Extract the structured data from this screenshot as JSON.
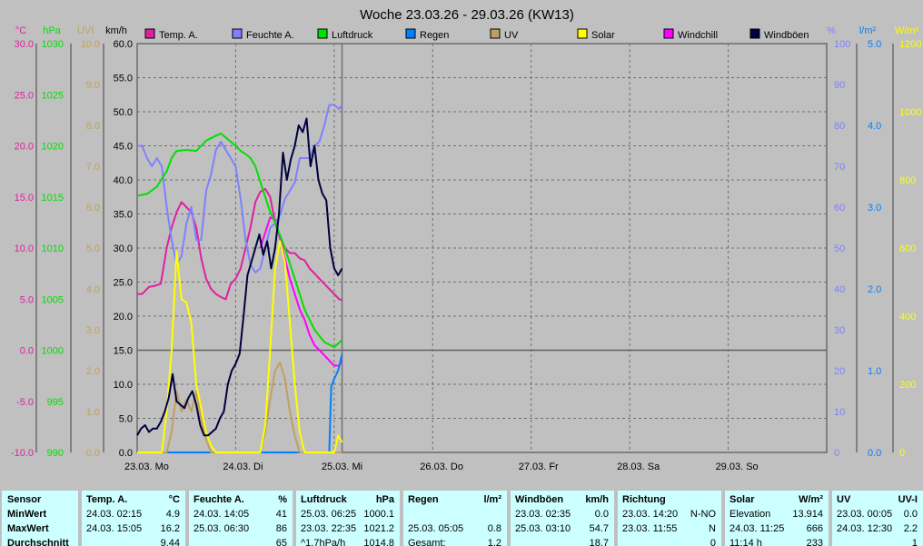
{
  "window": {
    "title": "Woche 23.03.26 - 29.03.26 (KW13)"
  },
  "legend": [
    {
      "label": "Temp. A.",
      "color": "#e020a0"
    },
    {
      "label": "Feuchte A.",
      "color": "#8080ff"
    },
    {
      "label": "Luftdruck",
      "color": "#00e000"
    },
    {
      "label": "Regen",
      "color": "#0080ff"
    },
    {
      "label": "UV",
      "color": "#c0a060"
    },
    {
      "label": "Solar",
      "color": "#ffff00"
    },
    {
      "label": "Windchill",
      "color": "#ff00ff"
    },
    {
      "label": "Windböen",
      "color": "#000040"
    }
  ],
  "colors": {
    "temp": "#e020a0",
    "hum": "#8080ff",
    "press": "#00e000",
    "rain": "#0080ff",
    "uv": "#c0a060",
    "solar": "#ffff00",
    "windchill": "#ff00ff",
    "gust": "#000040",
    "plot_bg": "#c0c0c0",
    "grid": "#707070",
    "zero_line": "#606060",
    "stats_bg": "#ccffff"
  },
  "chart_data": {
    "type": "line",
    "title": "Woche 23.03.26 - 29.03.26 (KW13)",
    "x_unit": "days since 23.03. 00:00",
    "x_range": [
      0,
      7
    ],
    "day_labels": [
      "23.03.  Mo",
      "24.03.  Di",
      "25.03.  Mi",
      "26.03.  Do",
      "27.03.  Fr",
      "28.03.  Sa",
      "29.03.  So"
    ],
    "cursor_x": 2.08,
    "axes": [
      {
        "id": "temp",
        "unit": "°C",
        "color": "#e020a0",
        "min": -10,
        "max": 30,
        "ticks": [
          "30.0",
          "25.0",
          "20.0",
          "15.0",
          "10.0",
          "5.0",
          "0.0",
          "-5.0",
          "-10.0"
        ]
      },
      {
        "id": "press",
        "unit": "hPa",
        "color": "#00e000",
        "min": 990,
        "max": 1030,
        "ticks": [
          "1030",
          "1025",
          "1020",
          "1015",
          "1010",
          "1005",
          "1000",
          "995",
          "990"
        ]
      },
      {
        "id": "uv",
        "unit": "UVI",
        "color": "#c0a060",
        "min": 0,
        "max": 10,
        "ticks": [
          "10.0",
          "9.0",
          "8.0",
          "7.0",
          "6.0",
          "5.0",
          "4.0",
          "3.0",
          "2.0",
          "1.0",
          "0.0"
        ]
      },
      {
        "id": "wind",
        "unit": "km/h",
        "color": "#000000",
        "min": 0,
        "max": 60,
        "ticks": [
          "60.0",
          "55.0",
          "50.0",
          "45.0",
          "40.0",
          "35.0",
          "30.0",
          "25.0",
          "20.0",
          "15.0",
          "10.0",
          "5.0",
          "0.0"
        ]
      },
      {
        "id": "hum",
        "unit": "%",
        "color": "#8080ff",
        "min": 0,
        "max": 100,
        "ticks": [
          "100",
          "90",
          "80",
          "70",
          "60",
          "50",
          "40",
          "30",
          "20",
          "10",
          "0"
        ]
      },
      {
        "id": "rain",
        "unit": "l/m²",
        "color": "#0080ff",
        "min": 0,
        "max": 5,
        "ticks": [
          "5.0",
          "4.0",
          "3.0",
          "2.0",
          "1.0",
          "0.0"
        ]
      },
      {
        "id": "solar",
        "unit": "W/m²",
        "color": "#ffff00",
        "min": 0,
        "max": 1200,
        "ticks": [
          "1200",
          "1000",
          "800",
          "600",
          "400",
          "200",
          "0"
        ]
      }
    ],
    "series": [
      {
        "name": "Temp. A.",
        "axis": "temp",
        "color": "#e020a0",
        "x": [
          0,
          0.05,
          0.12,
          0.18,
          0.24,
          0.3,
          0.35,
          0.4,
          0.45,
          0.5,
          0.55,
          0.6,
          0.65,
          0.7,
          0.75,
          0.8,
          0.85,
          0.9,
          0.95,
          1.0,
          1.05,
          1.1,
          1.15,
          1.2,
          1.25,
          1.3,
          1.35,
          1.4,
          1.45,
          1.5,
          1.55,
          1.6,
          1.65,
          1.7,
          1.75,
          1.8,
          1.85,
          1.9,
          1.95,
          2.0,
          2.05,
          2.08
        ],
        "y": [
          5.5,
          5.5,
          6.2,
          6.3,
          6.5,
          10.0,
          12.0,
          13.5,
          14.5,
          14.0,
          13.5,
          12.0,
          9.0,
          7.0,
          6.0,
          5.5,
          5.2,
          5.0,
          6.5,
          7.0,
          8.0,
          10.0,
          12.0,
          14.5,
          15.5,
          15.8,
          15.0,
          12.5,
          11.0,
          10.0,
          9.5,
          9.5,
          9.0,
          8.8,
          8.0,
          7.5,
          7.0,
          6.5,
          6.0,
          5.5,
          5.0,
          4.9
        ]
      },
      {
        "name": "Windchill",
        "axis": "temp",
        "color": "#ff00ff",
        "x": [
          1.25,
          1.3,
          1.35,
          1.4,
          1.45,
          1.5,
          1.55,
          1.6,
          1.65,
          1.7,
          1.75,
          1.8,
          1.85,
          1.9,
          1.95,
          2.0,
          2.05,
          2.08
        ],
        "y": [
          10.0,
          11.5,
          13.0,
          12.8,
          11.0,
          9.0,
          7.0,
          5.5,
          4.0,
          3.0,
          1.5,
          0.5,
          0.0,
          -0.5,
          -1.0,
          -1.5,
          -1.5,
          -1.0
        ]
      },
      {
        "name": "Feuchte A.",
        "axis": "hum",
        "color": "#8080ff",
        "x": [
          0,
          0.05,
          0.1,
          0.15,
          0.2,
          0.25,
          0.3,
          0.35,
          0.4,
          0.45,
          0.5,
          0.55,
          0.6,
          0.65,
          0.7,
          0.75,
          0.8,
          0.85,
          0.9,
          0.95,
          1.0,
          1.05,
          1.1,
          1.15,
          1.2,
          1.25,
          1.3,
          1.35,
          1.4,
          1.45,
          1.5,
          1.55,
          1.6,
          1.65,
          1.7,
          1.75,
          1.8,
          1.85,
          1.9,
          1.95,
          2.0,
          2.05,
          2.08
        ],
        "y": [
          75,
          75,
          72,
          70,
          72,
          70,
          60,
          52,
          46,
          48,
          56,
          60,
          52,
          52,
          64,
          68,
          74,
          76,
          74,
          72,
          70,
          62,
          52,
          46,
          44,
          45,
          50,
          55,
          56,
          58,
          62,
          64,
          66,
          72,
          72,
          72,
          75,
          76,
          80,
          85,
          85,
          84,
          85
        ]
      },
      {
        "name": "Luftdruck",
        "axis": "press",
        "color": "#00e000",
        "x": [
          0,
          0.1,
          0.2,
          0.3,
          0.35,
          0.4,
          0.5,
          0.6,
          0.7,
          0.8,
          0.85,
          0.9,
          0.95,
          1.0,
          1.05,
          1.1,
          1.15,
          1.2,
          1.3,
          1.35,
          1.4,
          1.5,
          1.6,
          1.7,
          1.8,
          1.9,
          2.0,
          2.08
        ],
        "y": [
          1015.1,
          1015.3,
          1016.0,
          1017.5,
          1018.8,
          1019.5,
          1019.6,
          1019.5,
          1020.5,
          1021.0,
          1021.2,
          1020.8,
          1020.4,
          1020.0,
          1019.5,
          1019.2,
          1018.8,
          1018.0,
          1015.0,
          1013.5,
          1012.5,
          1010.0,
          1007.0,
          1004.0,
          1002.0,
          1000.8,
          1000.3,
          1001.0
        ]
      },
      {
        "name": "Regen",
        "axis": "rain",
        "color": "#0080ff",
        "x": [
          0,
          1.95,
          1.97,
          2.0,
          2.04,
          2.08
        ],
        "y": [
          0,
          0,
          0.8,
          0.9,
          1.0,
          1.2
        ]
      },
      {
        "name": "UV",
        "axis": "uv",
        "color": "#c0a060",
        "x": [
          0,
          0.3,
          0.35,
          0.4,
          0.45,
          0.5,
          0.55,
          0.6,
          0.65,
          0.7,
          0.75,
          0.8,
          1.25,
          1.3,
          1.35,
          1.4,
          1.45,
          1.5,
          1.55,
          1.6,
          1.65,
          2.08
        ],
        "y": [
          0,
          0,
          0.5,
          1.5,
          1.0,
          1.3,
          1.0,
          1.5,
          0.8,
          0.3,
          0,
          0,
          0,
          0.5,
          1.3,
          2.0,
          2.2,
          1.8,
          1.0,
          0.4,
          0,
          0
        ]
      },
      {
        "name": "Solar",
        "axis": "solar",
        "color": "#ffff00",
        "x": [
          0,
          0.25,
          0.3,
          0.35,
          0.4,
          0.45,
          0.5,
          0.55,
          0.6,
          0.65,
          0.7,
          0.75,
          0.8,
          1.25,
          1.3,
          1.35,
          1.4,
          1.45,
          1.5,
          1.55,
          1.6,
          1.65,
          1.7,
          1.95,
          2.0,
          2.04,
          2.08
        ],
        "y": [
          0,
          0,
          120,
          300,
          590,
          450,
          440,
          380,
          200,
          130,
          60,
          20,
          0,
          0,
          80,
          300,
          540,
          620,
          560,
          380,
          200,
          60,
          0,
          0,
          0,
          50,
          30
        ]
      },
      {
        "name": "Windböen",
        "axis": "wind",
        "color": "#000040",
        "x": [
          0,
          0.04,
          0.08,
          0.12,
          0.16,
          0.2,
          0.24,
          0.28,
          0.32,
          0.36,
          0.4,
          0.44,
          0.48,
          0.52,
          0.56,
          0.6,
          0.64,
          0.68,
          0.72,
          0.76,
          0.8,
          0.84,
          0.88,
          0.92,
          0.96,
          1.0,
          1.04,
          1.08,
          1.12,
          1.16,
          1.2,
          1.24,
          1.28,
          1.32,
          1.36,
          1.4,
          1.44,
          1.48,
          1.52,
          1.56,
          1.6,
          1.64,
          1.68,
          1.72,
          1.76,
          1.8,
          1.84,
          1.88,
          1.92,
          1.96,
          2.0,
          2.04,
          2.08
        ],
        "y": [
          2.5,
          3.5,
          4.0,
          3.0,
          3.5,
          3.5,
          4.5,
          6.0,
          8.0,
          11.5,
          7.5,
          7.0,
          6.5,
          8.0,
          9.0,
          7.0,
          4.0,
          2.5,
          2.5,
          3.0,
          3.5,
          5.0,
          6.0,
          10.0,
          12.0,
          13.0,
          14.5,
          20.0,
          26.0,
          28.0,
          30.0,
          32.0,
          29.0,
          31.0,
          27.0,
          30.0,
          35.0,
          44.0,
          40.0,
          43.0,
          45.0,
          48.0,
          47.0,
          49.0,
          42.0,
          45.0,
          40.0,
          38.0,
          37.0,
          30.0,
          27.0,
          26.0,
          27.0
        ]
      }
    ]
  },
  "stats": {
    "sensor": {
      "title": "Sensor",
      "rows": [
        "MinWert",
        "MaxWert",
        "Durchschnitt"
      ]
    },
    "columns": [
      {
        "title": "Temp. A.",
        "unit": "°C",
        "rows": [
          [
            "24.03.  02:15",
            "4.9"
          ],
          [
            "24.03.  15:05",
            "16.2"
          ],
          [
            "",
            "9.44"
          ]
        ]
      },
      {
        "title": "Feuchte A.",
        "unit": "%",
        "rows": [
          [
            "24.03.  14:05",
            "41"
          ],
          [
            "25.03.  06:30",
            "86"
          ],
          [
            "",
            "65"
          ]
        ]
      },
      {
        "title": "Luftdruck",
        "unit": "hPa",
        "rows": [
          [
            "25.03.  06:25",
            "1000.1"
          ],
          [
            "23.03.  22:35",
            "1021.2"
          ],
          [
            "^1.7hPa/h",
            "1014.8"
          ]
        ]
      },
      {
        "title": "Regen",
        "unit": "l/m²",
        "rows": [
          [
            "",
            ""
          ],
          [
            "25.03.  05:05",
            "0.8"
          ],
          [
            "Gesamt:",
            "1.2"
          ]
        ]
      },
      {
        "title": "Windböen",
        "unit": "km/h",
        "rows": [
          [
            "23.03.  02:35",
            "0.0"
          ],
          [
            "25.03.  03:10",
            "54.7"
          ],
          [
            "",
            "18.7"
          ]
        ]
      },
      {
        "title": "Richtung",
        "unit": "",
        "rows": [
          [
            "23.03.  14:20",
            "N-NO"
          ],
          [
            "23.03.  11:55",
            "N"
          ],
          [
            "",
            "0"
          ]
        ]
      },
      {
        "title": "Solar",
        "unit": "W/m²",
        "rows": [
          [
            "Elevation",
            "13.914"
          ],
          [
            "24.03.  11:25",
            "666"
          ],
          [
            "11:14 h",
            "233"
          ]
        ]
      },
      {
        "title": "UV",
        "unit": "UV-I",
        "rows": [
          [
            "23.03.  00:05",
            "0.0"
          ],
          [
            "24.03.  12:30",
            "2.2"
          ],
          [
            "",
            "1"
          ]
        ]
      }
    ]
  }
}
